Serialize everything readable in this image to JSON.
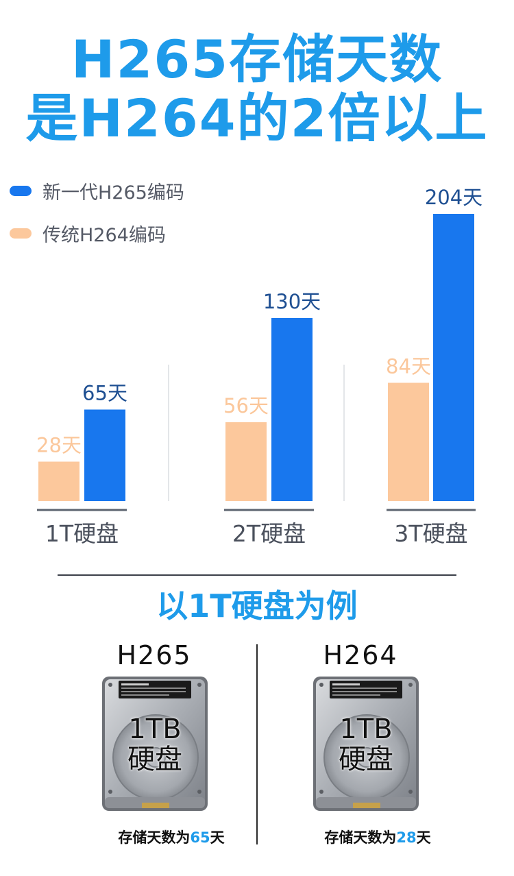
{
  "headline": {
    "line1": "H265存储天数",
    "line2": "是H264的2倍以上"
  },
  "colors": {
    "h265": "#1877EE",
    "h264": "#FCC89C",
    "h265_label": "#1E4F92",
    "h264_label": "#FBC79B",
    "accent": "#1E9BEA"
  },
  "chart_data": {
    "type": "bar",
    "categories": [
      "1T硬盘",
      "2T硬盘",
      "3T硬盘"
    ],
    "series": [
      {
        "name": "传统H264编码",
        "values": [
          28,
          56,
          84
        ],
        "labels": [
          "28天",
          "56天",
          "84天"
        ]
      },
      {
        "name": "新一代H265编码",
        "values": [
          65,
          130,
          204
        ],
        "labels": [
          "65天",
          "130天",
          "204天"
        ]
      }
    ],
    "ylim": [
      0,
      204
    ],
    "legend_position": "top-left",
    "grid": false
  },
  "comparison": {
    "title": "以1T硬盘为例",
    "left": {
      "codec": "H265",
      "disk_line1": "1TB",
      "disk_line2": "硬盘",
      "caption_prefix": "存储天数为",
      "caption_value": "65",
      "caption_suffix": "天"
    },
    "right": {
      "codec": "H264",
      "disk_line1": "1TB",
      "disk_line2": "硬盘",
      "caption_prefix": "存储天数为",
      "caption_value": "28",
      "caption_suffix": "天"
    }
  }
}
